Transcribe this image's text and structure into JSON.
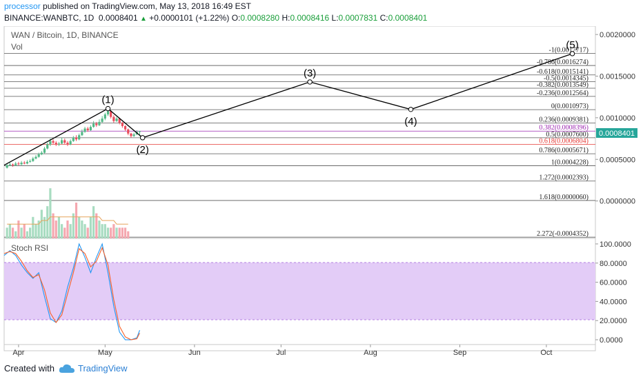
{
  "header": {
    "publisher": "processor",
    "published_text": "published on TradingView.com, May 13, 2018 16:49 EST",
    "symbol": "BINANCE:WANBTC, 1D",
    "last": "0.0008401",
    "change": "+0.0000101 (+1.22%)",
    "o_label": "O:",
    "o_value": "0.0008280",
    "h_label": "H:",
    "h_value": "0.0008416",
    "l_label": "L:",
    "l_value": "0.0007831",
    "c_label": "C:",
    "c_value": "0.0008401"
  },
  "chart_title": "WAN / Bitcoin, 1D, BINANCE",
  "vol_label": "Vol",
  "stoch_label": "Stoch RSI",
  "price_tag": "0.0008401",
  "footer": {
    "created_with": "Created with",
    "brand": "TradingView"
  },
  "colors": {
    "up": "#53b987",
    "down": "#eb4d5c",
    "fib_line": "#555555",
    "wave": "#000000",
    "rsi_band": "#e3ccf7",
    "k_line": "#2196f3",
    "d_line": "#f5612a",
    "price_tag": "#26a69a"
  },
  "chart_data": [
    {
      "type": "candlestick",
      "title": "WAN / Bitcoin, 1D, BINANCE",
      "y_axis_ticks": [
        "0.0020000",
        "0.0015000",
        "0.0010000",
        "0.0005000",
        "0.0000000"
      ],
      "y_tick_values": [
        0.002,
        0.0015,
        0.001,
        0.0005,
        0.0
      ],
      "ylim": [
        -0.00045,
        0.0021
      ],
      "x_axis_ticks": [
        "Apr",
        "May",
        "Jun",
        "Jul",
        "Aug",
        "Sep",
        "Oct"
      ],
      "x_tick_positions": [
        0,
        30,
        61,
        91,
        122,
        153,
        183
      ],
      "x_range": [
        -5,
        200
      ],
      "last_price": 0.0008401,
      "candles": [
        {
          "x": -4,
          "o": 0.0004,
          "c": 0.00043,
          "h": 0.00045,
          "l": 0.00039
        },
        {
          "x": -3,
          "o": 0.00043,
          "c": 0.00044,
          "h": 0.00046,
          "l": 0.00042
        },
        {
          "x": -2,
          "o": 0.00044,
          "c": 0.00043,
          "h": 0.00045,
          "l": 0.00041
        },
        {
          "x": -1,
          "o": 0.00043,
          "c": 0.00045,
          "h": 0.00047,
          "l": 0.00042
        },
        {
          "x": 0,
          "o": 0.00045,
          "c": 0.00044,
          "h": 0.00047,
          "l": 0.00043
        },
        {
          "x": 1,
          "o": 0.00044,
          "c": 0.00046,
          "h": 0.00048,
          "l": 0.00043
        },
        {
          "x": 2,
          "o": 0.00046,
          "c": 0.00045,
          "h": 0.00048,
          "l": 0.00044
        },
        {
          "x": 3,
          "o": 0.00045,
          "c": 0.00047,
          "h": 0.00049,
          "l": 0.00044
        },
        {
          "x": 4,
          "o": 0.00047,
          "c": 0.00048,
          "h": 0.0005,
          "l": 0.00046
        },
        {
          "x": 5,
          "o": 0.00048,
          "c": 0.00051,
          "h": 0.00053,
          "l": 0.00047
        },
        {
          "x": 6,
          "o": 0.00051,
          "c": 0.00053,
          "h": 0.00055,
          "l": 0.0005
        },
        {
          "x": 7,
          "o": 0.00053,
          "c": 0.00056,
          "h": 0.00058,
          "l": 0.00052
        },
        {
          "x": 8,
          "o": 0.00056,
          "c": 0.00058,
          "h": 0.0006,
          "l": 0.00055
        },
        {
          "x": 9,
          "o": 0.00058,
          "c": 0.00063,
          "h": 0.00065,
          "l": 0.00057
        },
        {
          "x": 10,
          "o": 0.00063,
          "c": 0.00068,
          "h": 0.0007,
          "l": 0.00062
        },
        {
          "x": 11,
          "o": 0.00068,
          "c": 0.00072,
          "h": 0.00075,
          "l": 0.00066
        },
        {
          "x": 12,
          "o": 0.00072,
          "c": 0.0007,
          "h": 0.00074,
          "l": 0.00068
        },
        {
          "x": 13,
          "o": 0.0007,
          "c": 0.00068,
          "h": 0.00072,
          "l": 0.00066
        },
        {
          "x": 14,
          "o": 0.00068,
          "c": 0.00069,
          "h": 0.00071,
          "l": 0.00066
        },
        {
          "x": 15,
          "o": 0.00069,
          "c": 0.00073,
          "h": 0.00076,
          "l": 0.00068
        },
        {
          "x": 16,
          "o": 0.00073,
          "c": 0.0007,
          "h": 0.00075,
          "l": 0.00068
        },
        {
          "x": 17,
          "o": 0.0007,
          "c": 0.00068,
          "h": 0.00072,
          "l": 0.00066
        },
        {
          "x": 18,
          "o": 0.00068,
          "c": 0.00072,
          "h": 0.00074,
          "l": 0.00067
        },
        {
          "x": 19,
          "o": 0.00072,
          "c": 0.00076,
          "h": 0.00078,
          "l": 0.00071
        },
        {
          "x": 20,
          "o": 0.00076,
          "c": 0.00074,
          "h": 0.00079,
          "l": 0.00072
        },
        {
          "x": 21,
          "o": 0.00074,
          "c": 0.00079,
          "h": 0.00081,
          "l": 0.00073
        },
        {
          "x": 22,
          "o": 0.00079,
          "c": 0.00083,
          "h": 0.00086,
          "l": 0.00078
        },
        {
          "x": 23,
          "o": 0.00083,
          "c": 0.00087,
          "h": 0.00089,
          "l": 0.00082
        },
        {
          "x": 24,
          "o": 0.00087,
          "c": 0.00085,
          "h": 0.00089,
          "l": 0.00083
        },
        {
          "x": 25,
          "o": 0.00085,
          "c": 0.00089,
          "h": 0.00091,
          "l": 0.00084
        },
        {
          "x": 26,
          "o": 0.00089,
          "c": 0.00093,
          "h": 0.00096,
          "l": 0.00088
        },
        {
          "x": 27,
          "o": 0.00093,
          "c": 0.00091,
          "h": 0.00095,
          "l": 0.00089
        },
        {
          "x": 28,
          "o": 0.00091,
          "c": 0.00095,
          "h": 0.00098,
          "l": 0.0009
        },
        {
          "x": 29,
          "o": 0.00095,
          "c": 0.00099,
          "h": 0.00102,
          "l": 0.00094
        },
        {
          "x": 30,
          "o": 0.00099,
          "c": 0.00104,
          "h": 0.00106,
          "l": 0.00097
        },
        {
          "x": 31,
          "o": 0.00104,
          "c": 0.00108,
          "h": 0.0011,
          "l": 0.00102
        },
        {
          "x": 32,
          "o": 0.00108,
          "c": 0.00101,
          "h": 0.00109,
          "l": 0.00099
        },
        {
          "x": 33,
          "o": 0.00101,
          "c": 0.00096,
          "h": 0.00103,
          "l": 0.00094
        },
        {
          "x": 34,
          "o": 0.00096,
          "c": 0.00099,
          "h": 0.00101,
          "l": 0.00095
        },
        {
          "x": 35,
          "o": 0.00099,
          "c": 0.00094,
          "h": 0.001,
          "l": 0.00092
        },
        {
          "x": 36,
          "o": 0.00094,
          "c": 0.0009,
          "h": 0.00095,
          "l": 0.00088
        },
        {
          "x": 37,
          "o": 0.0009,
          "c": 0.00086,
          "h": 0.00091,
          "l": 0.00084
        },
        {
          "x": 38,
          "o": 0.00086,
          "c": 0.00081,
          "h": 0.00087,
          "l": 0.00079
        },
        {
          "x": 39,
          "o": 0.00081,
          "c": 0.00078,
          "h": 0.00082,
          "l": 0.00076
        },
        {
          "x": 40,
          "o": 0.00078,
          "c": 0.0008,
          "h": 0.00082,
          "l": 0.00077
        },
        {
          "x": 41,
          "o": 0.0008,
          "c": 0.00083,
          "h": 0.00085,
          "l": 0.00079
        },
        {
          "x": 42,
          "o": 0.00083,
          "c": 0.00084,
          "h": 0.00084,
          "l": 0.00078
        }
      ],
      "fib_levels": [
        {
          "label": "-1(0.0017717)",
          "value": 0.0017717
        },
        {
          "label": "-0.786(0.0016274)",
          "value": 0.0016274
        },
        {
          "label": "-0.618(0.0015141)",
          "value": 0.0015141
        },
        {
          "label": "-0.5(0.0014345)",
          "value": 0.0014345
        },
        {
          "label": "-0.382(0.0013549)",
          "value": 0.0013549
        },
        {
          "label": "-0.236(0.0012564)",
          "value": 0.0012564
        },
        {
          "label": "0(0.0010973)",
          "value": 0.0010973
        },
        {
          "label": "0.236(0.0009381)",
          "value": 0.0009381
        },
        {
          "label": "0.382(0.0008396)",
          "value": 0.0008396,
          "color": "#9c27b0"
        },
        {
          "label": "0.5(0.0007600)",
          "value": 0.00076
        },
        {
          "label": "0.618(0.0006804)",
          "value": 0.0006804,
          "color": "#e53935"
        },
        {
          "label": "0.786(0.0005671)",
          "value": 0.0005671
        },
        {
          "label": "1(0.0004228)",
          "value": 0.0004228
        },
        {
          "label": "1.272(0.0002393)",
          "value": 0.0002393
        },
        {
          "label": "1.618(0.0000060)",
          "value": 6e-06
        },
        {
          "label": "2.272(-0.0004352)",
          "value": -0.0004352
        }
      ],
      "elliott_waves": [
        {
          "label": "",
          "x": -5,
          "y": 0.00043
        },
        {
          "label": "(1)",
          "x": 31,
          "y": 0.00111
        },
        {
          "label": "(2)",
          "x": 43,
          "y": 0.00076
        },
        {
          "label": "(3)",
          "x": 101,
          "y": 0.00143
        },
        {
          "label": "(4)",
          "x": 136,
          "y": 0.0011
        },
        {
          "label": "(5)",
          "x": 192,
          "y": 0.00177
        }
      ],
      "volume": [
        3,
        4,
        3,
        2,
        5,
        3,
        4,
        2,
        3,
        6,
        4,
        5,
        8,
        6,
        9,
        14,
        7,
        5,
        6,
        4,
        3,
        5,
        4,
        7,
        10,
        6,
        5,
        4,
        3,
        6,
        9,
        7,
        5,
        4,
        4,
        3,
        3,
        4,
        3,
        3,
        3,
        3,
        2
      ],
      "volume_ma": [
        4,
        4,
        4,
        4,
        4,
        4,
        4,
        4,
        4,
        4,
        4,
        4,
        5,
        5,
        5,
        6,
        6,
        6,
        6,
        6,
        6,
        6,
        6,
        6,
        6,
        6,
        6,
        6,
        6,
        6,
        6,
        6,
        6,
        5,
        5,
        5,
        5,
        5,
        4,
        4,
        4,
        4,
        4
      ]
    },
    {
      "type": "line",
      "title": "Stoch RSI",
      "y_axis_ticks": [
        "100.0000",
        "80.0000",
        "60.0000",
        "40.0000",
        "20.0000",
        "0.0000"
      ],
      "y_tick_values": [
        100,
        80,
        60,
        40,
        20,
        0
      ],
      "ylim": [
        -5,
        105
      ],
      "band": [
        20,
        80
      ],
      "series": [
        {
          "values_x": [
            -5,
            -3,
            -1,
            1,
            3,
            5,
            7,
            9,
            11,
            13,
            15,
            17,
            19,
            21,
            23,
            25,
            27,
            29,
            31,
            33,
            35,
            37,
            39,
            41,
            42
          ],
          "values": [
            88,
            93,
            88,
            78,
            70,
            64,
            70,
            45,
            22,
            18,
            30,
            55,
            75,
            100,
            86,
            70,
            86,
            100,
            70,
            35,
            8,
            0,
            0,
            2,
            10
          ]
        },
        {
          "values_x": [
            -5,
            -3,
            -1,
            1,
            3,
            5,
            7,
            9,
            11,
            13,
            15,
            17,
            19,
            21,
            23,
            25,
            27,
            29,
            31,
            33,
            35,
            37,
            39,
            41,
            42
          ],
          "values": [
            90,
            92,
            90,
            82,
            72,
            65,
            68,
            52,
            28,
            18,
            26,
            48,
            70,
            95,
            90,
            76,
            82,
            96,
            78,
            42,
            14,
            3,
            0,
            1,
            7
          ]
        }
      ]
    }
  ]
}
